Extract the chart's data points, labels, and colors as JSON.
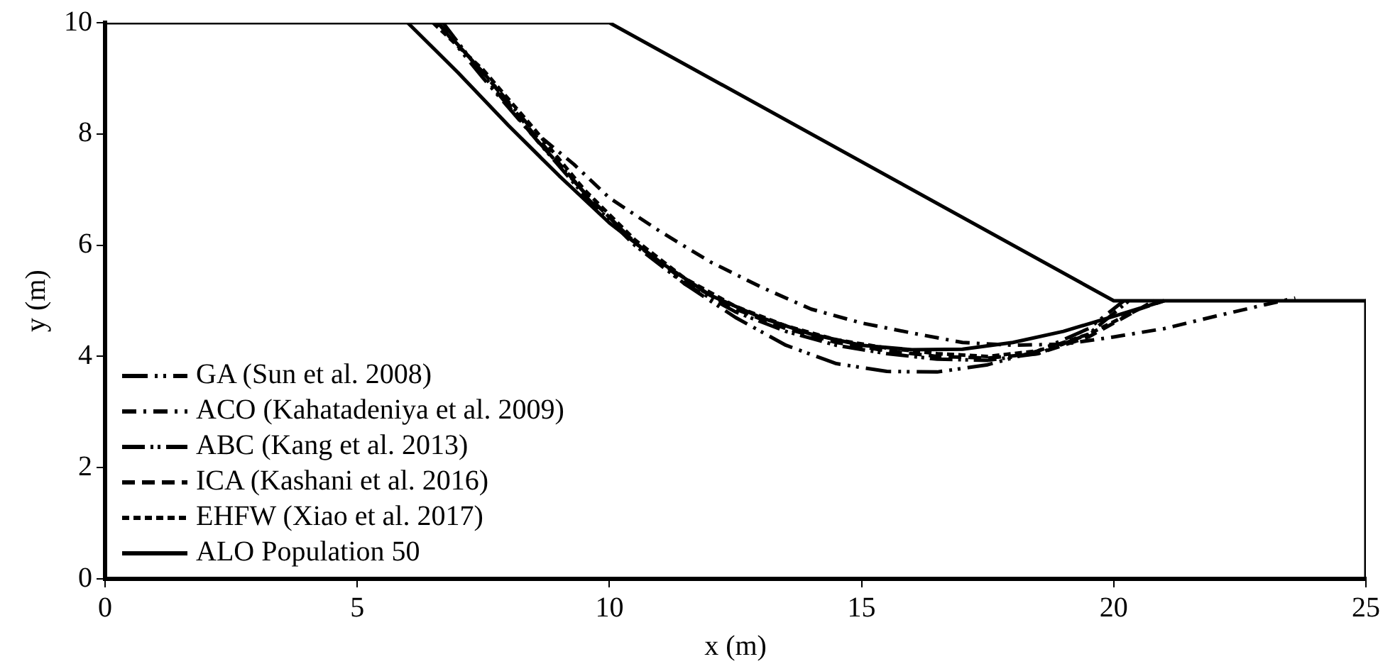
{
  "chart_data": {
    "type": "line",
    "xlabel": "x (m)",
    "ylabel": "y (m)",
    "xlim": [
      0,
      25
    ],
    "xticks": [
      0,
      5,
      10,
      15,
      20,
      25
    ],
    "ylim": [
      0,
      10
    ],
    "yticks": [
      0,
      2,
      4,
      6,
      8,
      10
    ],
    "grid": false,
    "legend": "bottom left",
    "marker": "none",
    "series": [
      {
        "color": "#000000",
        "line_style": "solid",
        "x": [
          0,
          10,
          20,
          25
        ],
        "values": [
          10,
          10,
          5,
          5
        ]
      },
      {
        "color": "#000000",
        "line_style": "solid",
        "x": [
          25,
          25
        ],
        "values": [
          5,
          0
        ]
      },
      {
        "name": "GA (Sun et al. 2008)",
        "color": "#000000",
        "line_style": "dashed",
        "x": [
          6.6,
          7.5,
          8.5,
          9.5,
          10.5,
          11.5,
          12.5,
          13.5,
          14.5,
          15.5,
          16.5,
          17.5,
          18.5,
          19.5,
          20.2
        ],
        "values": [
          10,
          9.0,
          7.95,
          6.95,
          6.05,
          5.3,
          4.7,
          4.2,
          3.87,
          3.73,
          3.72,
          3.85,
          4.1,
          4.5,
          5.0
        ]
      },
      {
        "name": "ACO (Kahatadeniya et al. 2009)",
        "color": "#000000",
        "line_style": "dashed",
        "x": [
          6.6,
          7.5,
          8.5,
          9.3,
          10,
          11,
          12,
          13,
          14,
          15,
          16,
          17,
          18,
          19,
          20,
          21,
          22,
          23,
          23.6
        ],
        "values": [
          10,
          9.1,
          8.05,
          7.45,
          6.85,
          6.25,
          5.7,
          5.25,
          4.85,
          4.6,
          4.42,
          4.25,
          4.2,
          4.22,
          4.35,
          4.5,
          4.72,
          4.93,
          5.05
        ]
      },
      {
        "name": "ABC (Kang et al. 2013)",
        "color": "#000000",
        "line_style": "dashed",
        "x": [
          6.7,
          7.5,
          8.5,
          9.5,
          10.5,
          11.5,
          12.5,
          13.5,
          14.5,
          15.5,
          16.5,
          17.5,
          18.5,
          19.5,
          20.3
        ],
        "values": [
          10,
          9.05,
          7.95,
          6.9,
          6.0,
          5.3,
          4.8,
          4.45,
          4.2,
          4.05,
          3.95,
          3.93,
          4.05,
          4.4,
          5.0
        ]
      },
      {
        "name": "ICA (Kashani et al. 2016)",
        "color": "#000000",
        "line_style": "dashed",
        "x": [
          6.6,
          7.5,
          8.5,
          9.5,
          10.5,
          11.5,
          12.5,
          13.5,
          14.5,
          15.5,
          16.5,
          17.5,
          18.5,
          19.5,
          20.5,
          21
        ],
        "values": [
          10,
          9.1,
          8.0,
          6.95,
          6.05,
          5.35,
          4.85,
          4.5,
          4.25,
          4.1,
          4.0,
          3.97,
          4.05,
          4.35,
          4.85,
          5.0
        ]
      },
      {
        "name": "EHFW (Xiao et al. 2017)",
        "color": "#000000",
        "line_style": "dotted",
        "x": [
          6.5,
          7.5,
          8.5,
          9.5,
          10.5,
          11.5,
          12.5,
          13.5,
          14.5,
          15.5,
          16.5,
          17.5,
          18.5,
          19.5,
          20.5,
          20.8
        ],
        "values": [
          10,
          9.15,
          8.1,
          7.0,
          6.1,
          5.4,
          4.9,
          4.55,
          4.3,
          4.15,
          4.05,
          4.0,
          4.1,
          4.4,
          4.85,
          5.0
        ]
      },
      {
        "name": "ALO Population 50",
        "color": "#000000",
        "line_style": "solid",
        "x": [
          6,
          7,
          8,
          9,
          10,
          11,
          12,
          13,
          14,
          15,
          16,
          17,
          18,
          19,
          20,
          21
        ],
        "values": [
          10,
          9.1,
          8.15,
          7.25,
          6.4,
          5.7,
          5.1,
          4.7,
          4.4,
          4.2,
          4.12,
          4.13,
          4.25,
          4.45,
          4.72,
          5.0
        ]
      }
    ]
  }
}
